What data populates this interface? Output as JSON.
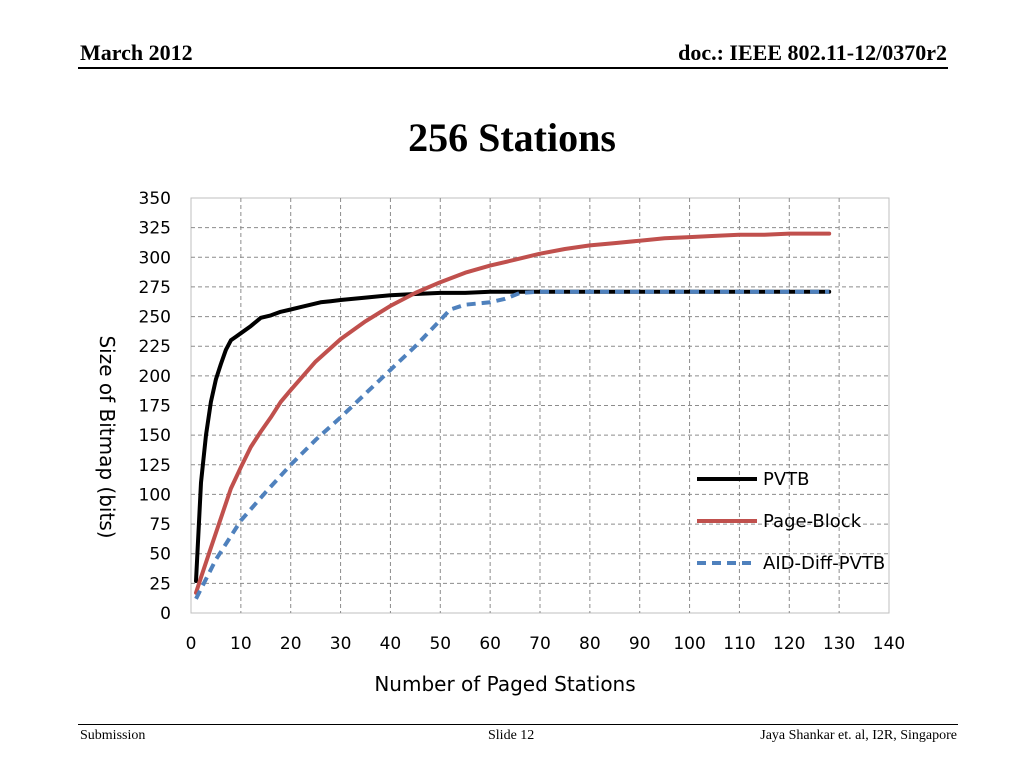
{
  "header": {
    "left": "March 2012",
    "right": "doc.: IEEE 802.11-12/0370r2"
  },
  "slide_title": "256 Stations",
  "footer": {
    "left": "Submission",
    "center": "Slide 12",
    "right": "Jaya Shankar et. al, I2R, Singapore"
  },
  "chart_data": {
    "type": "line",
    "title": "",
    "xlabel": "Number of Paged Stations",
    "ylabel": "Size of Bitmap (bits)",
    "xlim": [
      0,
      140
    ],
    "ylim": [
      0,
      350
    ],
    "xticks": [
      0,
      10,
      20,
      30,
      40,
      50,
      60,
      70,
      80,
      90,
      100,
      110,
      120,
      130,
      140
    ],
    "yticks": [
      0,
      25,
      50,
      75,
      100,
      125,
      150,
      175,
      200,
      225,
      250,
      275,
      300,
      325,
      350
    ],
    "grid": true,
    "legend_position": "bottom-right",
    "series": [
      {
        "name": "PVTB",
        "color": "#000000",
        "dash": "solid",
        "x": [
          1,
          2,
          3,
          4,
          5,
          6,
          7,
          8,
          9,
          10,
          12,
          14,
          16,
          18,
          20,
          22,
          24,
          26,
          28,
          30,
          35,
          40,
          45,
          50,
          55,
          60,
          65,
          70,
          80,
          90,
          100,
          110,
          120,
          128
        ],
        "y": [
          27,
          110,
          150,
          178,
          197,
          210,
          222,
          230,
          233,
          236,
          242,
          249,
          251,
          254,
          256,
          258,
          260,
          262,
          263,
          264,
          266,
          268,
          269,
          270,
          270,
          271,
          271,
          271,
          271,
          271,
          271,
          271,
          271,
          271
        ]
      },
      {
        "name": "Page-Block",
        "color": "#c0504d",
        "dash": "solid",
        "x": [
          1,
          2,
          4,
          6,
          8,
          10,
          12,
          14,
          16,
          18,
          20,
          25,
          30,
          35,
          40,
          45,
          50,
          55,
          60,
          65,
          70,
          75,
          80,
          85,
          90,
          95,
          100,
          105,
          110,
          115,
          120,
          125,
          128
        ],
        "y": [
          17,
          30,
          55,
          80,
          105,
          123,
          140,
          153,
          165,
          178,
          188,
          212,
          231,
          246,
          259,
          270,
          279,
          287,
          293,
          298,
          303,
          307,
          310,
          312,
          314,
          316,
          317,
          318,
          319,
          319,
          320,
          320,
          320
        ]
      },
      {
        "name": "AID-Diff-PVTB",
        "color": "#4f81bd",
        "dash": "dashed",
        "x": [
          1,
          5,
          10,
          15,
          20,
          25,
          30,
          35,
          40,
          45,
          50,
          52,
          55,
          60,
          63,
          66,
          70,
          80,
          90,
          100,
          110,
          120,
          128
        ],
        "y": [
          12,
          45,
          78,
          102,
          125,
          146,
          165,
          185,
          205,
          225,
          247,
          256,
          260,
          262,
          265,
          270,
          271,
          271,
          271,
          271,
          271,
          271,
          271
        ]
      }
    ]
  }
}
